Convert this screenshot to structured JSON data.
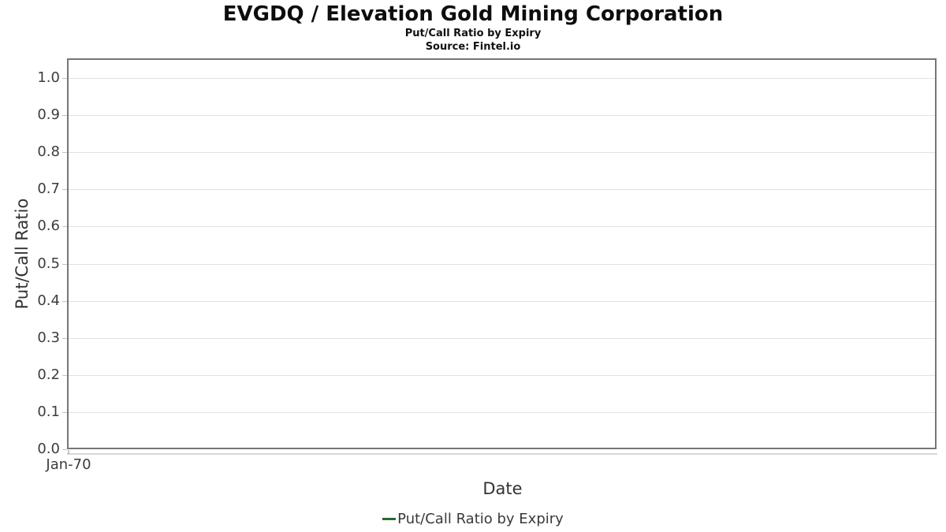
{
  "chart_data": {
    "type": "line",
    "title": "EVGDQ / Elevation Gold Mining Corporation",
    "subtitle": "Put/Call Ratio by Expiry",
    "source": "Source: Fintel.io",
    "xlabel": "Date",
    "ylabel": "Put/Call Ratio",
    "x_tick_labels": [
      "Jan-70"
    ],
    "y_tick_labels": [
      "1.0",
      "0.9",
      "0.8",
      "0.7",
      "0.6",
      "0.5",
      "0.4",
      "0.3",
      "0.2",
      "0.1",
      "0.0"
    ],
    "ylim": [
      0.0,
      1.05
    ],
    "grid": true,
    "legend_position": "bottom",
    "series": [
      {
        "name": "Put/Call Ratio by Expiry",
        "color": "#266b33",
        "x": [],
        "values": []
      }
    ]
  }
}
